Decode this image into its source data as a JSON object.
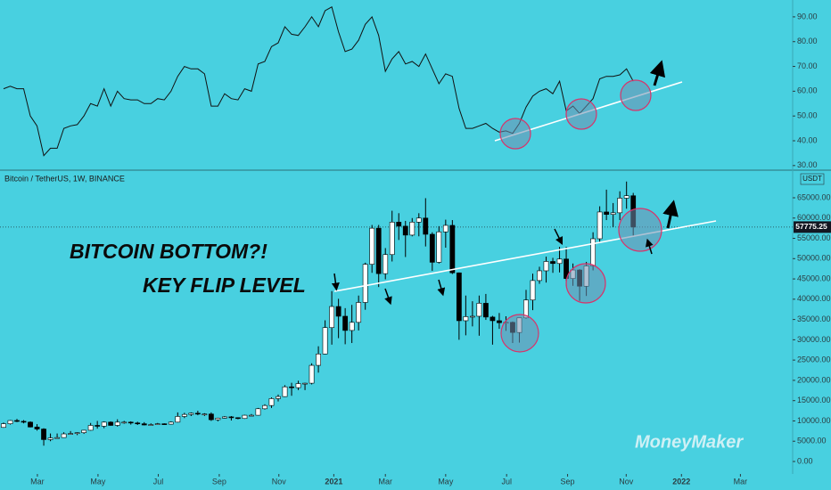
{
  "chart_data": [
    {
      "type": "line",
      "color": "#111111",
      "values": [
        61,
        62,
        61,
        61,
        50,
        46,
        34,
        37,
        37,
        45,
        46,
        46.5,
        50,
        55,
        54,
        61,
        54,
        60,
        57,
        56.5,
        56.5,
        55,
        55,
        57,
        56.5,
        60,
        66,
        70,
        69,
        69,
        67,
        54,
        54,
        59,
        57,
        56.5,
        61,
        60,
        71,
        72,
        78,
        79.5,
        86,
        83,
        82.5,
        86,
        90,
        86,
        92.5,
        94,
        84,
        76,
        77,
        80.6,
        87,
        90,
        82.5,
        68,
        73,
        76,
        71,
        72,
        70,
        75,
        69,
        63,
        67,
        66,
        53,
        45,
        45,
        46,
        47,
        45,
        43.5,
        44,
        43,
        47,
        53.6,
        58,
        60,
        61,
        59,
        64,
        52,
        54,
        51,
        54,
        57,
        65,
        66,
        66,
        66.6,
        69,
        64
      ],
      "xlim": [
        -0.53,
        117.8
      ],
      "ylim": [
        28.5,
        96.8
      ],
      "yticks": [
        {
          "value": 30,
          "label": "30.00"
        },
        {
          "value": 40,
          "label": "40.00"
        },
        {
          "value": 50,
          "label": "50.00"
        },
        {
          "value": 60,
          "label": "60.00"
        },
        {
          "value": 70,
          "label": "70.00"
        },
        {
          "value": 80,
          "label": "80.00"
        },
        {
          "value": 90,
          "label": "90.00"
        }
      ]
    },
    {
      "type": "candlestick",
      "title": "Bitcoin / TetherUS, 1W, BINANCE",
      "currency": "USDT",
      "last_label": "57775.25",
      "watermark": "MoneyMaker",
      "up_color": "#ffffff",
      "down_color": "#000000",
      "annotations": [
        "BITCOIN BOTTOM?!",
        "KEY FLIP LEVEL"
      ],
      "candles": [
        [
          8400,
          9600,
          8300,
          9300
        ],
        [
          9300,
          10200,
          9100,
          10100
        ],
        [
          10100,
          10500,
          9700,
          9900
        ],
        [
          9900,
          10200,
          9400,
          9700
        ],
        [
          9700,
          9900,
          8400,
          8500
        ],
        [
          8500,
          9200,
          7600,
          8000
        ],
        [
          8000,
          8200,
          3900,
          5400
        ],
        [
          5400,
          6900,
          5000,
          5800
        ],
        [
          5800,
          6900,
          5700,
          5900
        ],
        [
          5900,
          7200,
          5900,
          6800
        ],
        [
          6800,
          7500,
          6700,
          6900
        ],
        [
          6900,
          7200,
          6500,
          7100
        ],
        [
          7100,
          7800,
          6800,
          7700
        ],
        [
          7700,
          9500,
          7600,
          8900
        ],
        [
          8900,
          10000,
          8100,
          8700
        ],
        [
          8700,
          9900,
          8200,
          9700
        ],
        [
          9700,
          9900,
          8800,
          8900
        ],
        [
          8900,
          10400,
          8600,
          9700
        ],
        [
          9700,
          10000,
          9300,
          9700
        ],
        [
          9700,
          9900,
          9100,
          9500
        ],
        [
          9500,
          9800,
          9000,
          9300
        ],
        [
          9300,
          9700,
          8900,
          9000
        ],
        [
          9000,
          9400,
          8900,
          9100
        ],
        [
          9100,
          9500,
          9000,
          9300
        ],
        [
          9300,
          9400,
          9100,
          9200
        ],
        [
          9200,
          9900,
          9100,
          9700
        ],
        [
          9700,
          12100,
          9600,
          11100
        ],
        [
          11100,
          12000,
          10700,
          11600
        ],
        [
          11600,
          12100,
          11200,
          11900
        ],
        [
          11900,
          12500,
          11400,
          11700
        ],
        [
          11700,
          11900,
          11200,
          11700
        ],
        [
          11700,
          12100,
          10000,
          10300
        ],
        [
          10300,
          10800,
          9900,
          10700
        ],
        [
          10700,
          11200,
          10600,
          11000
        ],
        [
          11000,
          11200,
          10100,
          10800
        ],
        [
          10800,
          10900,
          10400,
          10600
        ],
        [
          10600,
          11500,
          10500,
          11400
        ],
        [
          11400,
          11700,
          11200,
          11400
        ],
        [
          11400,
          13200,
          11300,
          13000
        ],
        [
          13000,
          14100,
          12800,
          13800
        ],
        [
          13800,
          15800,
          13200,
          15500
        ],
        [
          15500,
          16500,
          14800,
          16000
        ],
        [
          16000,
          18800,
          15900,
          18400
        ],
        [
          18400,
          19400,
          16200,
          18200
        ],
        [
          18200,
          19900,
          17600,
          19200
        ],
        [
          19200,
          19400,
          17600,
          19300
        ],
        [
          19300,
          24200,
          19000,
          23700
        ],
        [
          23700,
          28400,
          21900,
          26500
        ],
        [
          26500,
          34800,
          26400,
          33000
        ],
        [
          33000,
          42000,
          28800,
          38200
        ],
        [
          38200,
          40100,
          30400,
          35800
        ],
        [
          35800,
          37800,
          28900,
          32300
        ],
        [
          32300,
          38600,
          29200,
          34300
        ],
        [
          34300,
          40900,
          32300,
          39200
        ],
        [
          39200,
          49000,
          37400,
          48600
        ],
        [
          48600,
          58300,
          46500,
          57500
        ],
        [
          57500,
          58300,
          43000,
          46300
        ],
        [
          46300,
          52600,
          44900,
          51000
        ],
        [
          51000,
          61800,
          49300,
          59000
        ],
        [
          59000,
          61200,
          54600,
          58000
        ],
        [
          58000,
          59300,
          50400,
          55800
        ],
        [
          55800,
          60000,
          55500,
          59000
        ],
        [
          59000,
          61200,
          55500,
          60000
        ],
        [
          60000,
          64900,
          53000,
          56000
        ],
        [
          56000,
          56500,
          47000,
          49100
        ],
        [
          49100,
          58000,
          48800,
          56600
        ],
        [
          56600,
          59600,
          52700,
          58200
        ],
        [
          58200,
          59500,
          46200,
          46500
        ],
        [
          46500,
          46600,
          30000,
          34700
        ],
        [
          34700,
          40900,
          31100,
          35700
        ],
        [
          35700,
          39500,
          33300,
          35800
        ],
        [
          35800,
          40900,
          31000,
          39000
        ],
        [
          39000,
          41300,
          34900,
          35600
        ],
        [
          35600,
          35900,
          28800,
          34700
        ],
        [
          34700,
          36600,
          32700,
          34200
        ],
        [
          34200,
          35800,
          32200,
          34300
        ],
        [
          34300,
          34500,
          29200,
          31800
        ],
        [
          31800,
          35400,
          29300,
          35400
        ],
        [
          35400,
          42300,
          35200,
          39800
        ],
        [
          39800,
          46300,
          37300,
          44600
        ],
        [
          44600,
          48000,
          43800,
          47000
        ],
        [
          47000,
          50500,
          44100,
          49300
        ],
        [
          49300,
          50200,
          46500,
          48800
        ],
        [
          48800,
          52900,
          46600,
          49900
        ],
        [
          49900,
          52900,
          43300,
          45100
        ],
        [
          45100,
          48800,
          43300,
          47200
        ],
        [
          47200,
          47400,
          39600,
          43200
        ],
        [
          43200,
          49200,
          40800,
          48200
        ],
        [
          48200,
          56500,
          47100,
          54900
        ],
        [
          54900,
          62900,
          54000,
          61500
        ],
        [
          61500,
          67000,
          59500,
          60900
        ],
        [
          60900,
          63700,
          57800,
          61300
        ],
        [
          61300,
          66600,
          59500,
          64900
        ],
        [
          64900,
          69000,
          62300,
          65500
        ],
        [
          65500,
          66200,
          55600,
          57775.25
        ]
      ],
      "xlim": [
        -0.53,
        117.8
      ],
      "ylim": [
        -3074,
        71366
      ],
      "xticks": [
        {
          "value": 5.05,
          "label": "Mar"
        },
        {
          "value": 14.1,
          "label": "May"
        },
        {
          "value": 23.1,
          "label": "Jul"
        },
        {
          "value": 32.2,
          "label": "Sep"
        },
        {
          "value": 41.1,
          "label": "Nov"
        },
        {
          "value": 49.3,
          "label": "2021"
        },
        {
          "value": 57.0,
          "label": "Mar"
        },
        {
          "value": 66.0,
          "label": "May"
        },
        {
          "value": 75.1,
          "label": "Jul"
        },
        {
          "value": 84.2,
          "label": "Sep"
        },
        {
          "value": 92.95,
          "label": "Nov"
        },
        {
          "value": 101.2,
          "label": "2022"
        },
        {
          "value": 110.0,
          "label": "Mar"
        }
      ],
      "yticks": [
        {
          "value": 0,
          "label": "0.00"
        },
        {
          "value": 5000,
          "label": "5000.00"
        },
        {
          "value": 10000,
          "label": "10000.00"
        },
        {
          "value": 15000,
          "label": "15000.00"
        },
        {
          "value": 20000,
          "label": "20000.00"
        },
        {
          "value": 25000,
          "label": "25000.00"
        },
        {
          "value": 30000,
          "label": "30000.00"
        },
        {
          "value": 35000,
          "label": "35000.00"
        },
        {
          "value": 40000,
          "label": "40000.00"
        },
        {
          "value": 45000,
          "label": "45000.00"
        },
        {
          "value": 50000,
          "label": "50000.00"
        },
        {
          "value": 55000,
          "label": "55000.00"
        },
        {
          "value": 60000,
          "label": "60000.00"
        },
        {
          "value": 65000,
          "label": "65000.00"
        }
      ]
    }
  ]
}
